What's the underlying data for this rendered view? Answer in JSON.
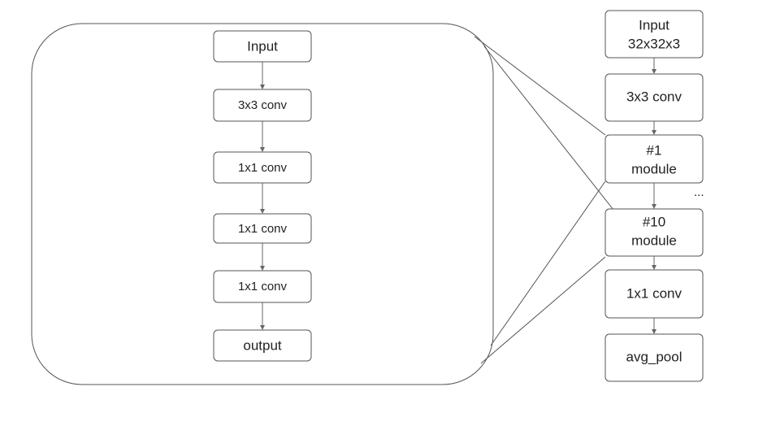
{
  "module_detail": {
    "nodes": [
      {
        "id": "input",
        "label": "Input"
      },
      {
        "id": "conv3x3",
        "label": "3x3 conv"
      },
      {
        "id": "conv1x1_a",
        "label": "1x1 conv"
      },
      {
        "id": "conv1x1_b",
        "label": "1x1 conv"
      },
      {
        "id": "conv1x1_c",
        "label": "1x1 conv"
      },
      {
        "id": "output",
        "label": "output"
      }
    ]
  },
  "network": {
    "nodes": [
      {
        "id": "net_input",
        "lines": [
          "Input",
          "32x32x3"
        ]
      },
      {
        "id": "net_conv3x3",
        "lines": [
          "3x3 conv"
        ]
      },
      {
        "id": "module_1",
        "lines": [
          "#1",
          "module"
        ]
      },
      {
        "id": "module_10",
        "lines": [
          "#10",
          "module"
        ]
      },
      {
        "id": "net_conv1x1",
        "lines": [
          "1x1 conv"
        ]
      },
      {
        "id": "avg_pool",
        "lines": [
          "avg_pool"
        ]
      }
    ],
    "ellipsis": "..."
  }
}
